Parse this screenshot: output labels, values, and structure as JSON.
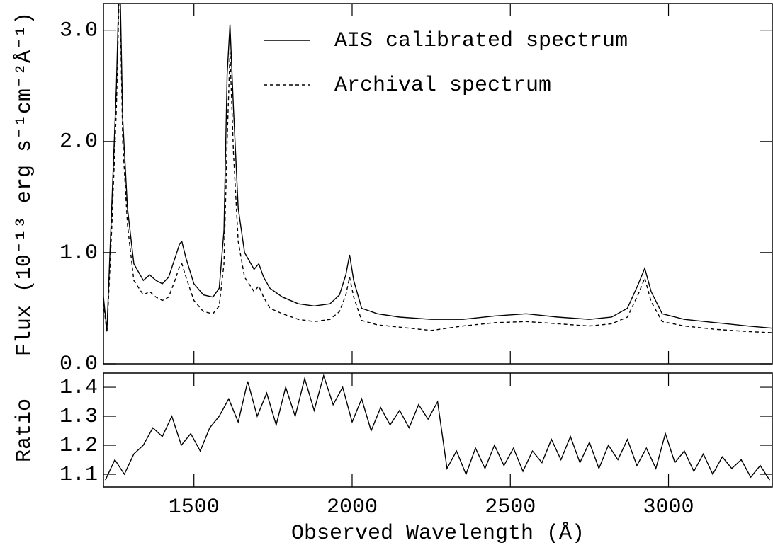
{
  "chart_data": [
    {
      "type": "line",
      "ylabel": "Flux (10⁻¹³ erg s⁻¹cm⁻²Å⁻¹)",
      "x": [
        1214,
        1225,
        1240,
        1255,
        1265,
        1275,
        1290,
        1310,
        1340,
        1360,
        1380,
        1400,
        1420,
        1440,
        1455,
        1462,
        1475,
        1500,
        1530,
        1560,
        1580,
        1595,
        1605,
        1614,
        1625,
        1640,
        1660,
        1690,
        1705,
        1720,
        1740,
        1780,
        1830,
        1880,
        1930,
        1960,
        1980,
        1992,
        2005,
        2030,
        2080,
        2150,
        2250,
        2350,
        2450,
        2550,
        2650,
        2750,
        2820,
        2870,
        2905,
        2925,
        2945,
        2980,
        3050,
        3150,
        3250,
        3328
      ],
      "series": [
        {
          "name": "AIS calibrated spectrum",
          "color": "#000000",
          "line_style": "solid",
          "values": [
            0.6,
            0.3,
            1.4,
            2.5,
            3.6,
            2.2,
            1.4,
            0.9,
            0.75,
            0.8,
            0.75,
            0.72,
            0.78,
            0.95,
            1.08,
            1.1,
            0.95,
            0.72,
            0.62,
            0.6,
            0.68,
            1.2,
            2.6,
            3.05,
            2.3,
            1.4,
            1.0,
            0.85,
            0.9,
            0.78,
            0.68,
            0.6,
            0.54,
            0.52,
            0.54,
            0.62,
            0.8,
            0.98,
            0.75,
            0.5,
            0.45,
            0.42,
            0.4,
            0.4,
            0.43,
            0.45,
            0.42,
            0.4,
            0.42,
            0.5,
            0.72,
            0.86,
            0.65,
            0.45,
            0.4,
            0.37,
            0.34,
            0.32
          ]
        },
        {
          "name": "Archival spectrum",
          "color": "#000000",
          "line_style": "dashed",
          "values": [
            0.55,
            0.28,
            1.2,
            2.3,
            3.5,
            2.0,
            1.25,
            0.75,
            0.62,
            0.65,
            0.6,
            0.57,
            0.6,
            0.75,
            0.88,
            0.9,
            0.78,
            0.57,
            0.47,
            0.45,
            0.52,
            0.9,
            2.0,
            2.8,
            1.9,
            1.1,
            0.78,
            0.65,
            0.7,
            0.6,
            0.5,
            0.45,
            0.4,
            0.38,
            0.4,
            0.47,
            0.62,
            0.78,
            0.6,
            0.39,
            0.35,
            0.33,
            0.3,
            0.34,
            0.37,
            0.38,
            0.36,
            0.34,
            0.36,
            0.42,
            0.63,
            0.77,
            0.56,
            0.38,
            0.34,
            0.31,
            0.29,
            0.28
          ]
        }
      ],
      "xlim": [
        1214,
        3328
      ],
      "ylim": [
        0,
        3.24
      ],
      "yticks": [
        {
          "value": 0,
          "label": "0.0"
        },
        {
          "value": 1,
          "label": "1.0"
        },
        {
          "value": 2,
          "label": "2.0"
        },
        {
          "value": 3,
          "label": "3.0"
        }
      ],
      "legend": "top-right"
    },
    {
      "type": "line",
      "ylabel": "Ratio",
      "xlabel": "Observed Wavelength (Å)",
      "x": [
        1220,
        1250,
        1280,
        1310,
        1340,
        1370,
        1400,
        1430,
        1460,
        1490,
        1520,
        1550,
        1580,
        1610,
        1640,
        1670,
        1700,
        1730,
        1760,
        1790,
        1820,
        1850,
        1880,
        1910,
        1940,
        1970,
        2000,
        2030,
        2060,
        2090,
        2120,
        2150,
        2180,
        2210,
        2240,
        2270,
        2300,
        2330,
        2360,
        2390,
        2420,
        2450,
        2480,
        2510,
        2540,
        2570,
        2600,
        2630,
        2660,
        2690,
        2720,
        2750,
        2780,
        2810,
        2840,
        2870,
        2900,
        2930,
        2960,
        2990,
        3020,
        3050,
        3080,
        3110,
        3140,
        3170,
        3200,
        3230,
        3260,
        3290,
        3320
      ],
      "series": [
        {
          "color": "#000000",
          "line_style": "solid",
          "values": [
            1.08,
            1.15,
            1.1,
            1.17,
            1.2,
            1.26,
            1.23,
            1.3,
            1.2,
            1.24,
            1.18,
            1.26,
            1.3,
            1.36,
            1.28,
            1.42,
            1.3,
            1.38,
            1.27,
            1.4,
            1.3,
            1.43,
            1.32,
            1.44,
            1.34,
            1.4,
            1.28,
            1.36,
            1.25,
            1.33,
            1.27,
            1.32,
            1.26,
            1.34,
            1.29,
            1.35,
            1.12,
            1.18,
            1.1,
            1.19,
            1.12,
            1.2,
            1.13,
            1.19,
            1.11,
            1.18,
            1.14,
            1.22,
            1.15,
            1.23,
            1.14,
            1.21,
            1.12,
            1.2,
            1.15,
            1.22,
            1.13,
            1.19,
            1.12,
            1.24,
            1.14,
            1.18,
            1.11,
            1.17,
            1.1,
            1.16,
            1.12,
            1.15,
            1.09,
            1.13,
            1.08
          ]
        }
      ],
      "xlim": [
        1214,
        3328
      ],
      "ylim": [
        1.056,
        1.449
      ],
      "xticks": [
        1500,
        2000,
        2500,
        3000
      ],
      "yticks": [
        1.1,
        1.2,
        1.3,
        1.4
      ]
    }
  ]
}
